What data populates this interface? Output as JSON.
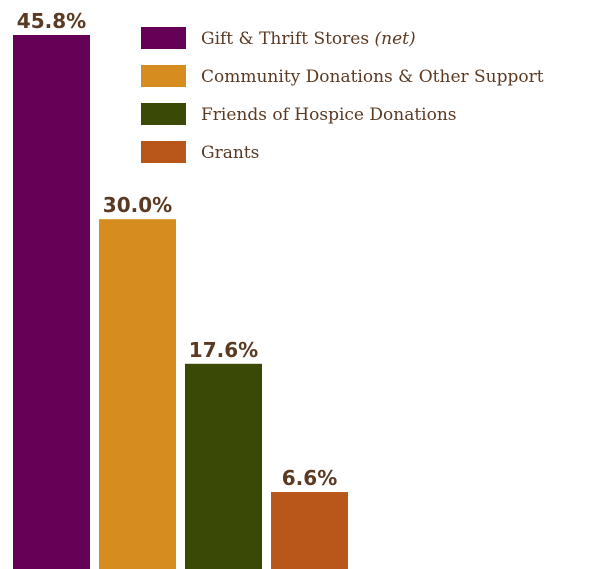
{
  "chart_data": {
    "type": "bar",
    "categories": [
      "Gift & Thrift Stores (net)",
      "Community Donations & Other Support",
      "Friends of Hospice Donations",
      "Grants"
    ],
    "values": [
      45.8,
      30.0,
      17.6,
      6.6
    ],
    "value_labels": [
      "45.8%",
      "30.0%",
      "17.6%",
      "6.6%"
    ],
    "colors": [
      "#650056",
      "#d68c1e",
      "#3a4a05",
      "#b9561a"
    ],
    "legend": [
      {
        "label": "Gift & Thrift Stores",
        "note": "(net)",
        "color": "#650056"
      },
      {
        "label": "Community Donations & Other Support",
        "note": "",
        "color": "#d68c1e"
      },
      {
        "label": "Friends of Hospice Donations",
        "note": "",
        "color": "#3a4a05"
      },
      {
        "label": "Grants",
        "note": "",
        "color": "#b9561a"
      }
    ],
    "legend_position": "top-right",
    "grid": false,
    "ylim": [
      0,
      45.8
    ]
  }
}
